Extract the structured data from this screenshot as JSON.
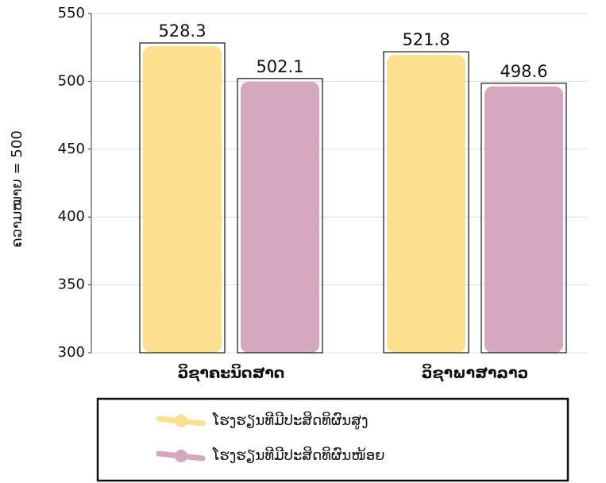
{
  "chart_data": {
    "type": "bar",
    "y_label": "ຄວາມໝາຍ = 500",
    "categories": [
      "ວິຊາຄະນິດສາດ",
      "ວິຊາພາສາລາວ"
    ],
    "series": [
      {
        "name": "ໂຮງຮຽນທີມີປະສິດທິຜົນສູງ",
        "color": "#fde08f",
        "values": [
          528.3,
          521.8
        ]
      },
      {
        "name": "ໂຮງຮຽນທີມີປະສິດທິຜົນໜ້ອຍ",
        "color": "#d5a8bf",
        "values": [
          502.1,
          498.6
        ]
      }
    ],
    "ylim": [
      300,
      550
    ],
    "yticks": [
      300,
      350,
      400,
      450,
      500,
      550
    ],
    "grid": true
  }
}
